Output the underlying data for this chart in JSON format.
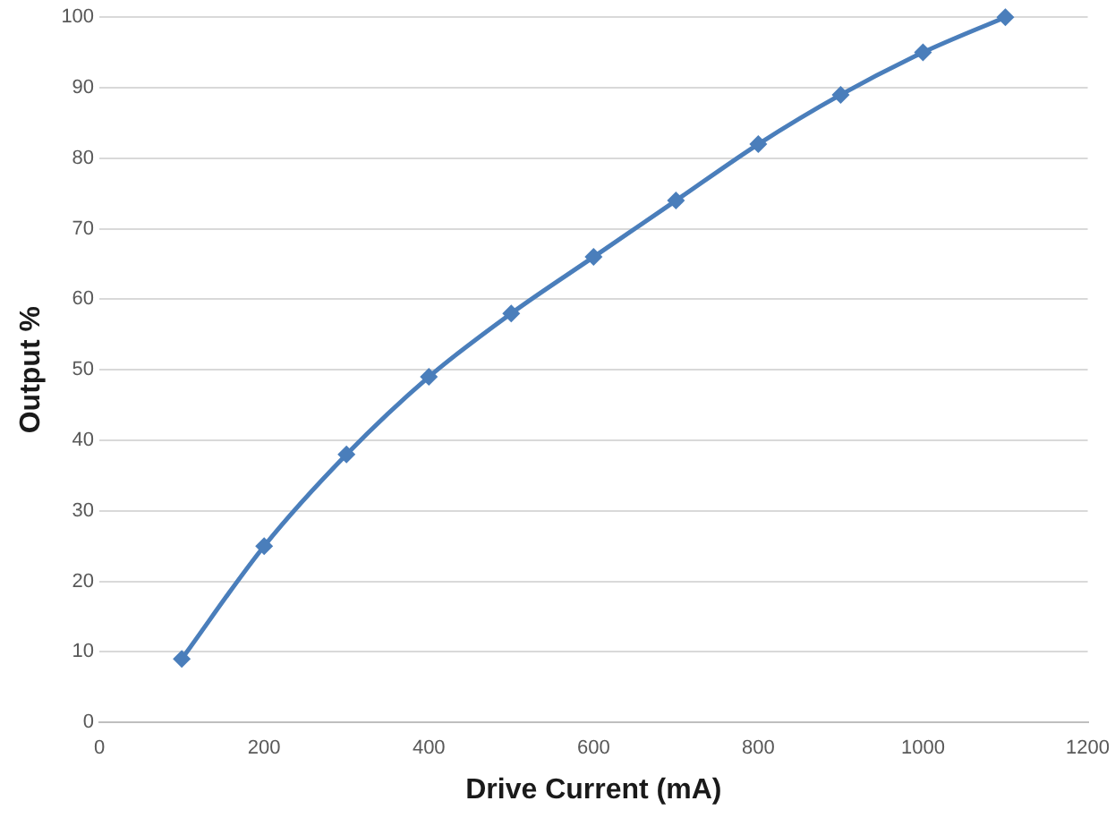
{
  "chart_data": {
    "type": "line",
    "xlabel": "Drive Current (mA)",
    "ylabel": "Output %",
    "x": [
      100,
      200,
      300,
      400,
      500,
      600,
      700,
      800,
      900,
      1000,
      1100
    ],
    "series": [
      {
        "color": "#4a7ebb",
        "values": [
          9,
          25,
          38,
          49,
          58,
          66,
          74,
          82,
          89,
          95,
          100
        ]
      }
    ],
    "xlim": [
      0,
      1200
    ],
    "xticks": [
      0,
      200,
      400,
      600,
      800,
      1000,
      1200
    ],
    "ylim": [
      0,
      100
    ],
    "yticks": [
      0,
      10,
      20,
      30,
      40,
      50,
      60,
      70,
      80,
      90,
      100
    ],
    "grid": "y",
    "marker": "diamond",
    "line_style": "solid",
    "legend": false
  }
}
